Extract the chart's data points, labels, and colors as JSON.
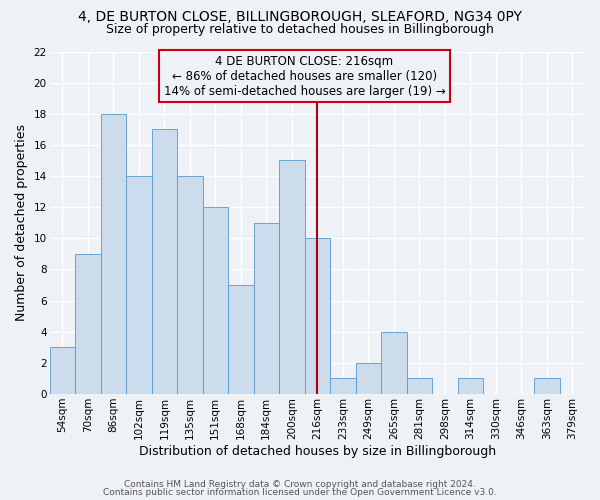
{
  "title_line1": "4, DE BURTON CLOSE, BILLINGBOROUGH, SLEAFORD, NG34 0PY",
  "title_line2": "Size of property relative to detached houses in Billingborough",
  "xlabel": "Distribution of detached houses by size in Billingborough",
  "ylabel": "Number of detached properties",
  "bar_labels": [
    "54sqm",
    "70sqm",
    "86sqm",
    "102sqm",
    "119sqm",
    "135sqm",
    "151sqm",
    "168sqm",
    "184sqm",
    "200sqm",
    "216sqm",
    "233sqm",
    "249sqm",
    "265sqm",
    "281sqm",
    "298sqm",
    "314sqm",
    "330sqm",
    "346sqm",
    "363sqm",
    "379sqm"
  ],
  "bar_values": [
    3,
    9,
    18,
    14,
    17,
    14,
    12,
    7,
    11,
    15,
    10,
    1,
    2,
    4,
    1,
    0,
    1,
    0,
    0,
    1,
    0
  ],
  "bar_color": "#ccdcec",
  "bar_edge_color": "#5599cc",
  "highlight_index": 10,
  "highlight_line_color": "#aa0011",
  "annotation_title": "4 DE BURTON CLOSE: 216sqm",
  "annotation_line1": "← 86% of detached houses are smaller (120)",
  "annotation_line2": "14% of semi-detached houses are larger (19) →",
  "annotation_box_edge_color": "#cc0011",
  "ylim": [
    0,
    22
  ],
  "yticks": [
    0,
    2,
    4,
    6,
    8,
    10,
    12,
    14,
    16,
    18,
    20,
    22
  ],
  "footer_line1": "Contains HM Land Registry data © Crown copyright and database right 2024.",
  "footer_line2": "Contains public sector information licensed under the Open Government Licence v3.0.",
  "bg_color": "#eef2f7",
  "grid_color": "#ffffff",
  "title_fontsize": 10,
  "subtitle_fontsize": 9,
  "tick_fontsize": 7.5,
  "label_fontsize": 9,
  "annotation_fontsize": 8.5,
  "footer_fontsize": 6.5
}
